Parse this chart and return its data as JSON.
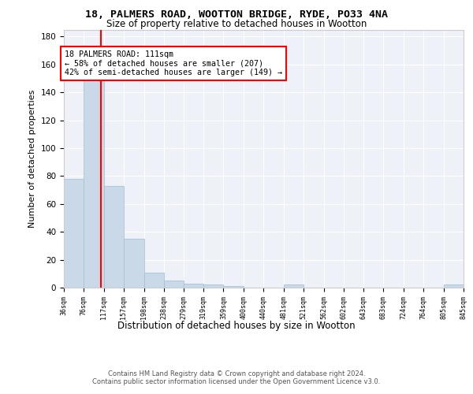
{
  "title1": "18, PALMERS ROAD, WOOTTON BRIDGE, RYDE, PO33 4NA",
  "title2": "Size of property relative to detached houses in Wootton",
  "xlabel": "Distribution of detached houses by size in Wootton",
  "ylabel": "Number of detached properties",
  "bar_edges": [
    36,
    76,
    117,
    157,
    198,
    238,
    279,
    319,
    359,
    400,
    440,
    481,
    521,
    562,
    602,
    643,
    683,
    724,
    764,
    805,
    845
  ],
  "bar_heights": [
    78,
    150,
    73,
    35,
    11,
    5,
    3,
    2,
    1,
    0,
    0,
    2,
    0,
    0,
    0,
    0,
    0,
    0,
    0,
    2
  ],
  "bar_color": "#c9d9e8",
  "bar_edgecolor": "#a0bcd4",
  "ref_line_x": 111,
  "ref_line_color": "red",
  "annotation_line1": "18 PALMERS ROAD: 111sqm",
  "annotation_line2": "← 58% of detached houses are smaller (207)",
  "annotation_line3": "42% of semi-detached houses are larger (149) →",
  "annotation_box_color": "white",
  "annotation_border_color": "red",
  "ylim": [
    0,
    185
  ],
  "yticks": [
    0,
    20,
    40,
    60,
    80,
    100,
    120,
    140,
    160,
    180
  ],
  "tick_labels": [
    "36sqm",
    "76sqm",
    "117sqm",
    "157sqm",
    "198sqm",
    "238sqm",
    "279sqm",
    "319sqm",
    "359sqm",
    "400sqm",
    "440sqm",
    "481sqm",
    "521sqm",
    "562sqm",
    "602sqm",
    "643sqm",
    "683sqm",
    "724sqm",
    "764sqm",
    "805sqm",
    "845sqm"
  ],
  "footer": "Contains HM Land Registry data © Crown copyright and database right 2024.\nContains public sector information licensed under the Open Government Licence v3.0.",
  "plot_bg_color": "#eef2f8"
}
